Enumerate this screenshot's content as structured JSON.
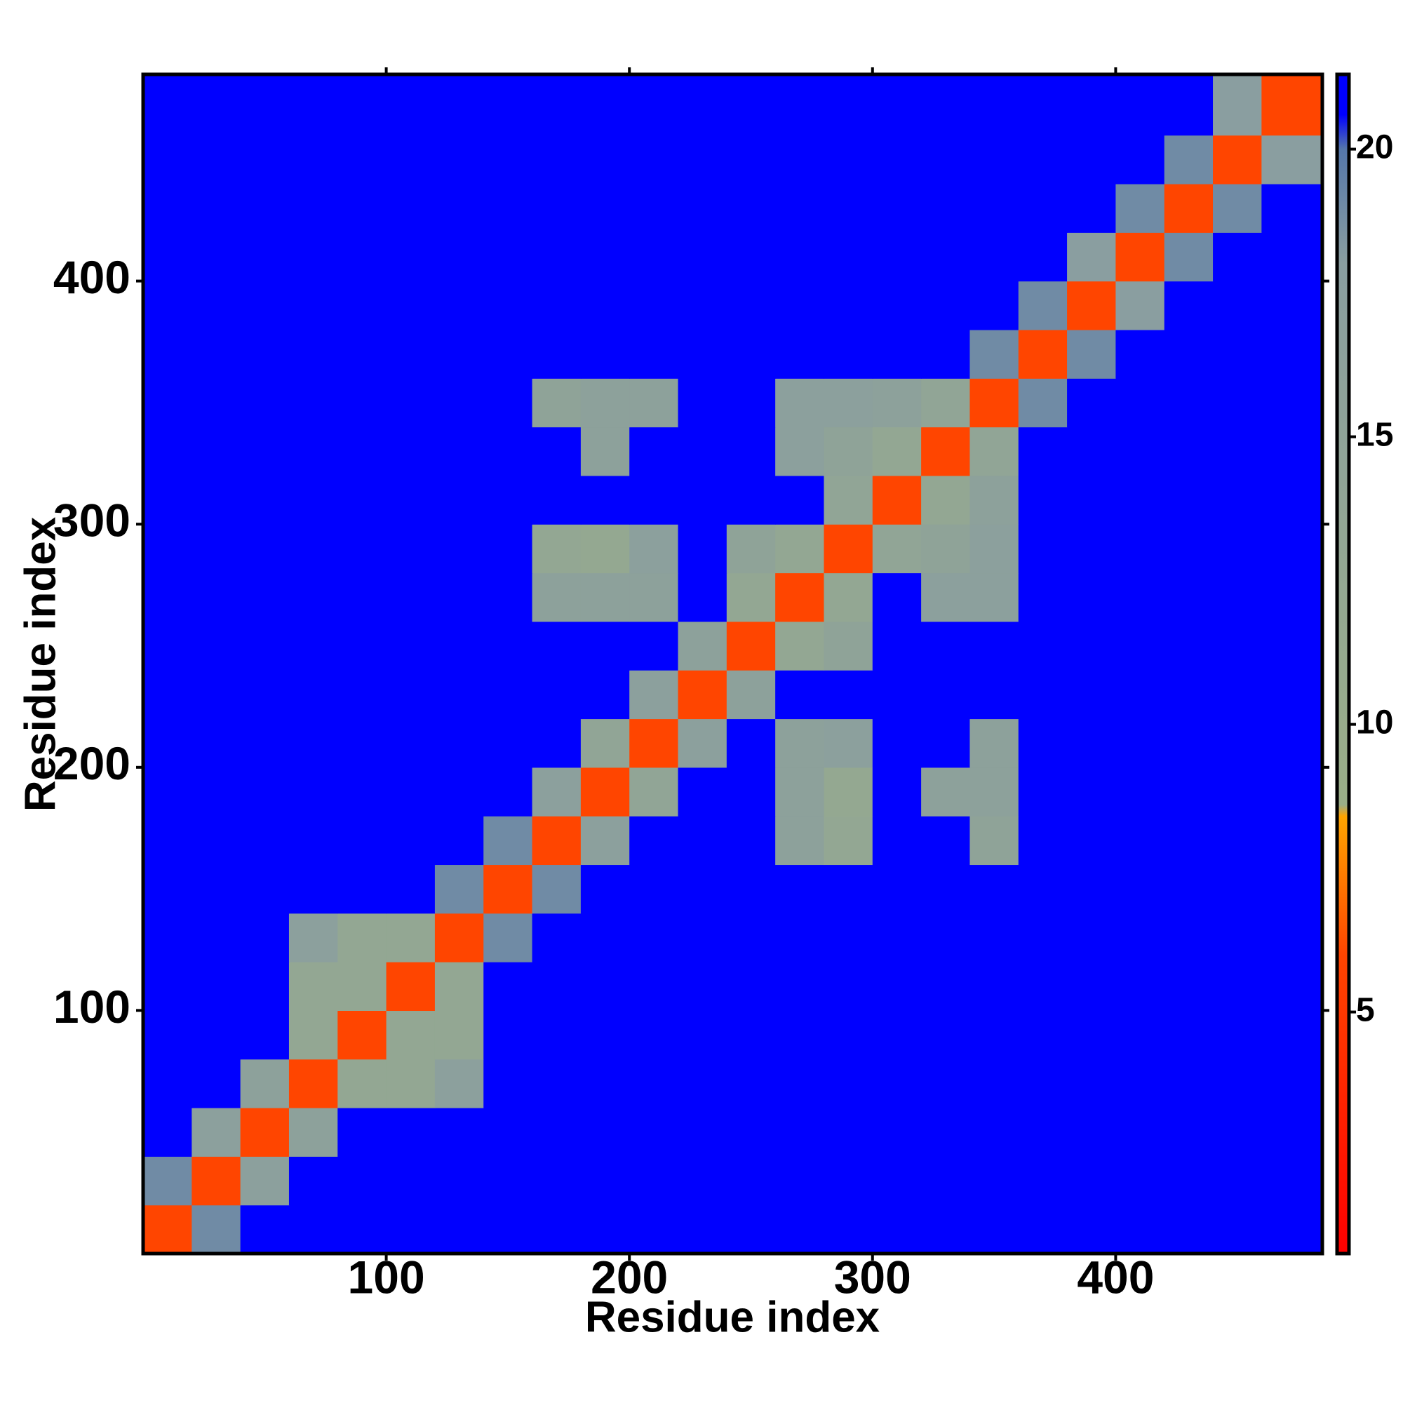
{
  "chart_data": {
    "type": "heatmap",
    "xlabel": "Residue index",
    "ylabel": "Residue index",
    "xlim": [
      0,
      485
    ],
    "ylim": [
      0,
      485
    ],
    "xticks": [
      100,
      200,
      300,
      400
    ],
    "yticks": [
      100,
      200,
      300,
      400
    ],
    "x_edges": [
      0,
      20,
      40,
      60,
      80,
      100,
      120,
      140,
      160,
      180,
      200,
      220,
      240,
      260,
      280,
      300,
      320,
      340,
      360,
      380,
      400,
      420,
      440,
      460,
      485
    ],
    "y_edges": [
      0,
      20,
      40,
      60,
      80,
      100,
      120,
      140,
      160,
      180,
      200,
      220,
      240,
      260,
      280,
      300,
      320,
      340,
      360,
      380,
      400,
      420,
      440,
      460,
      485
    ],
    "z": [
      [
        6,
        19,
        21,
        21,
        21,
        21,
        21,
        21,
        21,
        21,
        21,
        21,
        21,
        21,
        21,
        21,
        21,
        21,
        21,
        21,
        21,
        21,
        21,
        21
      ],
      [
        19,
        6,
        17,
        21,
        21,
        21,
        21,
        21,
        21,
        21,
        21,
        21,
        21,
        21,
        21,
        21,
        21,
        21,
        21,
        21,
        21,
        21,
        21,
        21
      ],
      [
        21,
        17,
        6,
        16,
        21,
        21,
        21,
        21,
        21,
        21,
        21,
        21,
        21,
        21,
        21,
        21,
        21,
        21,
        21,
        21,
        21,
        21,
        21,
        21
      ],
      [
        21,
        21,
        16,
        6,
        13,
        13,
        17,
        21,
        21,
        21,
        21,
        21,
        21,
        21,
        21,
        21,
        21,
        21,
        21,
        21,
        21,
        21,
        21,
        21
      ],
      [
        21,
        21,
        21,
        13,
        6,
        13,
        13,
        21,
        21,
        21,
        21,
        21,
        21,
        21,
        21,
        21,
        21,
        21,
        21,
        21,
        21,
        21,
        21,
        21
      ],
      [
        21,
        21,
        21,
        13,
        13,
        6,
        13,
        21,
        21,
        21,
        21,
        21,
        21,
        21,
        21,
        21,
        21,
        21,
        21,
        21,
        21,
        21,
        21,
        21
      ],
      [
        21,
        21,
        21,
        17,
        13,
        13,
        6,
        19,
        21,
        21,
        21,
        21,
        21,
        21,
        21,
        21,
        21,
        21,
        21,
        21,
        21,
        21,
        21,
        21
      ],
      [
        21,
        21,
        21,
        21,
        21,
        21,
        19,
        6,
        19,
        21,
        21,
        21,
        21,
        21,
        21,
        21,
        21,
        21,
        21,
        21,
        21,
        21,
        21,
        21
      ],
      [
        21,
        21,
        21,
        21,
        21,
        21,
        21,
        19,
        6,
        17,
        21,
        21,
        21,
        16,
        13,
        21,
        21,
        15,
        21,
        21,
        21,
        21,
        21,
        21
      ],
      [
        21,
        21,
        21,
        21,
        21,
        21,
        21,
        21,
        17,
        6,
        14,
        21,
        21,
        16,
        12,
        21,
        16,
        16,
        21,
        21,
        21,
        21,
        21,
        21
      ],
      [
        21,
        21,
        21,
        21,
        21,
        21,
        21,
        21,
        21,
        14,
        6,
        17,
        21,
        16,
        17,
        21,
        21,
        16,
        21,
        21,
        21,
        21,
        21,
        21
      ],
      [
        21,
        21,
        21,
        21,
        21,
        21,
        21,
        21,
        21,
        21,
        17,
        6,
        16,
        21,
        21,
        21,
        21,
        21,
        21,
        21,
        21,
        21,
        21,
        21
      ],
      [
        21,
        21,
        21,
        21,
        21,
        21,
        21,
        21,
        21,
        21,
        21,
        16,
        6,
        13,
        15,
        21,
        21,
        21,
        21,
        21,
        21,
        21,
        21,
        21
      ],
      [
        21,
        21,
        21,
        21,
        21,
        21,
        21,
        21,
        16,
        16,
        16,
        21,
        13,
        6,
        13,
        21,
        17,
        17,
        21,
        21,
        21,
        21,
        21,
        21
      ],
      [
        21,
        21,
        21,
        21,
        21,
        21,
        21,
        21,
        13,
        12,
        17,
        21,
        15,
        13,
        6,
        14,
        15,
        17,
        21,
        21,
        21,
        21,
        21,
        21
      ],
      [
        21,
        21,
        21,
        21,
        21,
        21,
        21,
        21,
        21,
        21,
        21,
        21,
        21,
        21,
        14,
        6,
        13,
        16,
        21,
        21,
        21,
        21,
        21,
        21
      ],
      [
        21,
        21,
        21,
        21,
        21,
        21,
        21,
        21,
        21,
        16,
        21,
        21,
        21,
        17,
        15,
        13,
        6,
        14,
        21,
        21,
        21,
        21,
        21,
        21
      ],
      [
        21,
        21,
        21,
        21,
        21,
        21,
        21,
        21,
        15,
        16,
        16,
        21,
        21,
        17,
        17,
        16,
        14,
        6,
        19,
        21,
        21,
        21,
        21,
        21
      ],
      [
        21,
        21,
        21,
        21,
        21,
        21,
        21,
        21,
        21,
        21,
        21,
        21,
        21,
        21,
        21,
        21,
        21,
        19,
        6,
        19,
        21,
        21,
        21,
        21
      ],
      [
        21,
        21,
        21,
        21,
        21,
        21,
        21,
        21,
        21,
        21,
        21,
        21,
        21,
        21,
        21,
        21,
        21,
        21,
        19,
        6,
        18,
        21,
        21,
        21
      ],
      [
        21,
        21,
        21,
        21,
        21,
        21,
        21,
        21,
        21,
        21,
        21,
        21,
        21,
        21,
        21,
        21,
        21,
        21,
        21,
        18,
        6,
        19,
        21,
        21
      ],
      [
        21,
        21,
        21,
        21,
        21,
        21,
        21,
        21,
        21,
        21,
        21,
        21,
        21,
        21,
        21,
        21,
        21,
        21,
        21,
        21,
        19,
        6,
        19,
        21
      ],
      [
        21,
        21,
        21,
        21,
        21,
        21,
        21,
        21,
        21,
        21,
        21,
        21,
        21,
        21,
        21,
        21,
        21,
        21,
        21,
        21,
        21,
        19,
        6,
        18
      ],
      [
        21,
        21,
        21,
        21,
        21,
        21,
        21,
        21,
        21,
        21,
        21,
        21,
        21,
        21,
        21,
        21,
        21,
        21,
        21,
        21,
        21,
        21,
        18,
        6
      ]
    ],
    "colormap": [
      {
        "value": 0.8,
        "color": "#ff0000"
      },
      {
        "value": 6,
        "color": "#ff4500"
      },
      {
        "value": 8.4,
        "color": "#ffa500"
      },
      {
        "value": 8.6,
        "color": "#9aae88"
      },
      {
        "value": 18,
        "color": "#8a9ea0"
      },
      {
        "value": 20,
        "color": "#5577aa"
      },
      {
        "value": 20.6,
        "color": "#0000ff"
      },
      {
        "value": 21.3,
        "color": "#0000ff"
      }
    ],
    "colorbar": {
      "lim": [
        0.8,
        21.3
      ],
      "ticks": [
        5,
        10,
        15,
        20
      ]
    }
  }
}
